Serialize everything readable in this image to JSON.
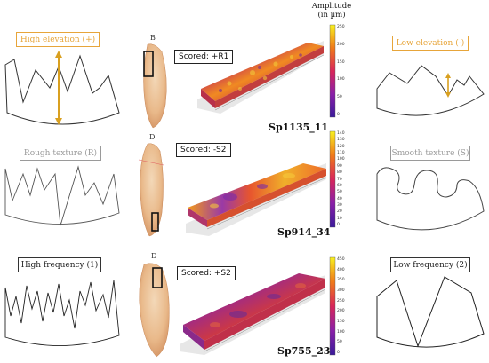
{
  "amplitude": {
    "title": "Amplitude",
    "unit": "(in µm)"
  },
  "left_labels": {
    "high_elevation": "High elevation (+)",
    "rough_texture": "Rough texture (R)",
    "high_frequency": "High frequency (1)"
  },
  "right_labels": {
    "low_elevation": "Low elevation (-)",
    "smooth_texture": "Smooth texture (S)",
    "low_frequency": "Low frequency (2)"
  },
  "rows": [
    {
      "tooth_letter": "B",
      "scored": "Scored: +R1",
      "sample": "Sp1135_11",
      "scale": [
        "250",
        "200",
        "150",
        "100",
        "50",
        "0"
      ]
    },
    {
      "tooth_letter": "D",
      "scored": "Scored: -S2",
      "sample": "Sp914_34",
      "scale": [
        "140",
        "130",
        "120",
        "110",
        "100",
        "90",
        "80",
        "70",
        "60",
        "50",
        "40",
        "30",
        "20",
        "10",
        "0"
      ]
    },
    {
      "tooth_letter": "D",
      "scored": "Scored: +S2",
      "sample": "Sp755_23",
      "scale": [
        "450",
        "400",
        "350",
        "300",
        "250",
        "200",
        "150",
        "100",
        "50",
        "0"
      ]
    }
  ],
  "colors": {
    "orange": "#e7a53a",
    "gray": "#9a9a9a",
    "black": "#222222"
  }
}
